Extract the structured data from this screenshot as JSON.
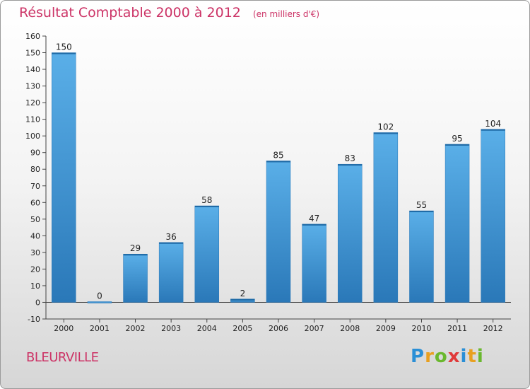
{
  "header": {
    "title": "Résultat Comptable 2000 à 2012",
    "subtitle": "(en milliers d'€)"
  },
  "footer": {
    "city": "BLEURVILLE",
    "logo_letters": [
      {
        "char": "P",
        "color": "#2a8fd6"
      },
      {
        "char": "r",
        "color": "#e8a020"
      },
      {
        "char": "o",
        "color": "#6ab82e"
      },
      {
        "char": "x",
        "color": "#e03a3a"
      },
      {
        "char": "i",
        "color": "#2a8fd6"
      },
      {
        "char": "t",
        "color": "#e8a020"
      },
      {
        "char": "i",
        "color": "#6ab82e"
      }
    ]
  },
  "chart_data": {
    "type": "bar",
    "title": "Résultat Comptable 2000 à 2012",
    "subtitle": "(en milliers d'€)",
    "categories": [
      "2000",
      "2001",
      "2002",
      "2003",
      "2004",
      "2005",
      "2006",
      "2007",
      "2008",
      "2009",
      "2010",
      "2011",
      "2012"
    ],
    "values": [
      150,
      0,
      29,
      36,
      58,
      2,
      85,
      47,
      83,
      102,
      55,
      95,
      104
    ],
    "ylim": [
      -10,
      160
    ],
    "yticks": [
      -10,
      0,
      10,
      20,
      30,
      40,
      50,
      60,
      70,
      80,
      90,
      100,
      110,
      120,
      130,
      140,
      150,
      160
    ],
    "grid": false,
    "bar_color": "#3d95d6",
    "bar_color_top": "#5aafe8",
    "bar_color_bottom": "#2a78b8"
  }
}
